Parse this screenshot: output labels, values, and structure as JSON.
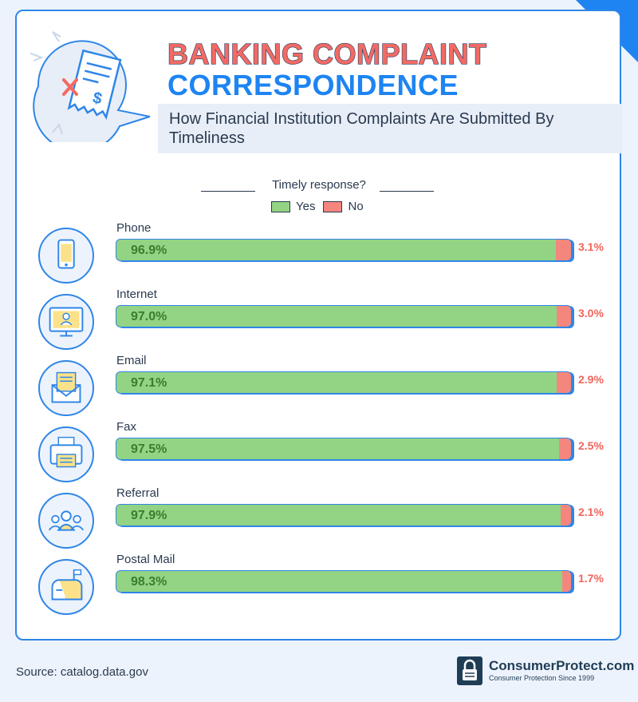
{
  "title_line1": "BANKING COMPLAINT",
  "title_line2": "CORRESPONDENCE",
  "subtitle": "How Financial Institution Complaints Are Submitted By Timeliness",
  "legend": {
    "title": "Timely response?",
    "yes": "Yes",
    "no": "No"
  },
  "colors": {
    "yes": "#92d483",
    "no": "#f4867e",
    "accent": "#1d84f2",
    "title_red": "#f36a63"
  },
  "chart_data": {
    "type": "bar",
    "orientation": "horizontal",
    "stacked": true,
    "title": "",
    "xlabel": "",
    "ylabel": "",
    "xlim": [
      0,
      100
    ],
    "categories": [
      "Phone",
      "Internet",
      "Email",
      "Fax",
      "Referral",
      "Postal Mail"
    ],
    "icons": [
      "phone-icon",
      "computer-icon",
      "envelope-icon",
      "fax-icon",
      "people-icon",
      "mailbox-icon"
    ],
    "series": [
      {
        "name": "Yes",
        "values": [
          96.9,
          97.0,
          97.1,
          97.5,
          97.9,
          98.3
        ]
      },
      {
        "name": "No",
        "values": [
          3.1,
          3.0,
          2.9,
          2.5,
          2.1,
          1.7
        ]
      }
    ],
    "yes_labels": [
      "96.9%",
      "97.0%",
      "97.1%",
      "97.5%",
      "97.9%",
      "98.3%"
    ],
    "no_labels": [
      "3.1%",
      "3.0%",
      "2.9%",
      "2.5%",
      "2.1%",
      "1.7%"
    ]
  },
  "source": "Source: catalog.data.gov",
  "logo": {
    "name": "ConsumerProtect.com",
    "tagline": "Consumer Protection Since 1999"
  }
}
